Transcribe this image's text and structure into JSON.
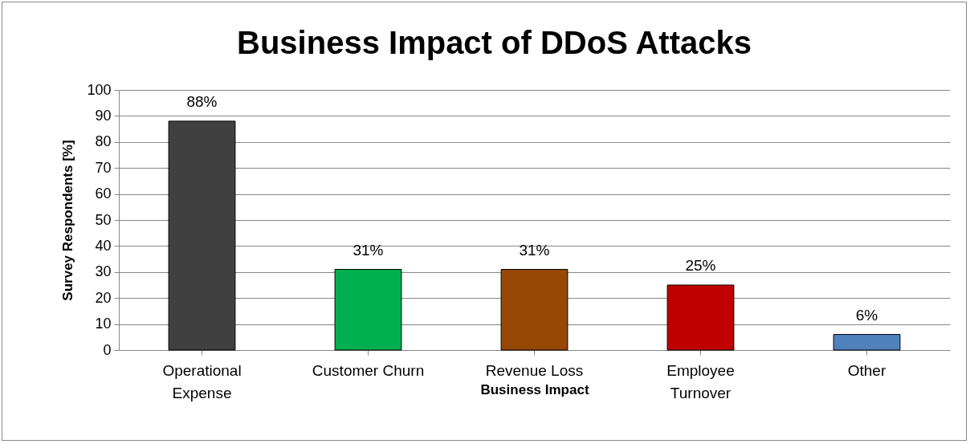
{
  "chart_data": {
    "type": "bar",
    "title": "Business Impact of DDoS Attacks",
    "xlabel": "Business Impact",
    "ylabel": "Survey Respondents [%]",
    "categories": [
      "Operational Expense",
      "Customer Churn",
      "Revenue Loss",
      "Employee Turnover",
      "Other"
    ],
    "values": [
      88,
      31,
      31,
      25,
      6
    ],
    "colors": [
      "#404040",
      "#00b050",
      "#974706",
      "#c00000",
      "#4f81bd"
    ],
    "value_labels": [
      "88%",
      "31%",
      "31%",
      "25%",
      "6%"
    ],
    "ylim": [
      0,
      100
    ],
    "yticks": [
      0,
      10,
      20,
      30,
      40,
      50,
      60,
      70,
      80,
      90,
      100
    ],
    "grid": "y"
  }
}
